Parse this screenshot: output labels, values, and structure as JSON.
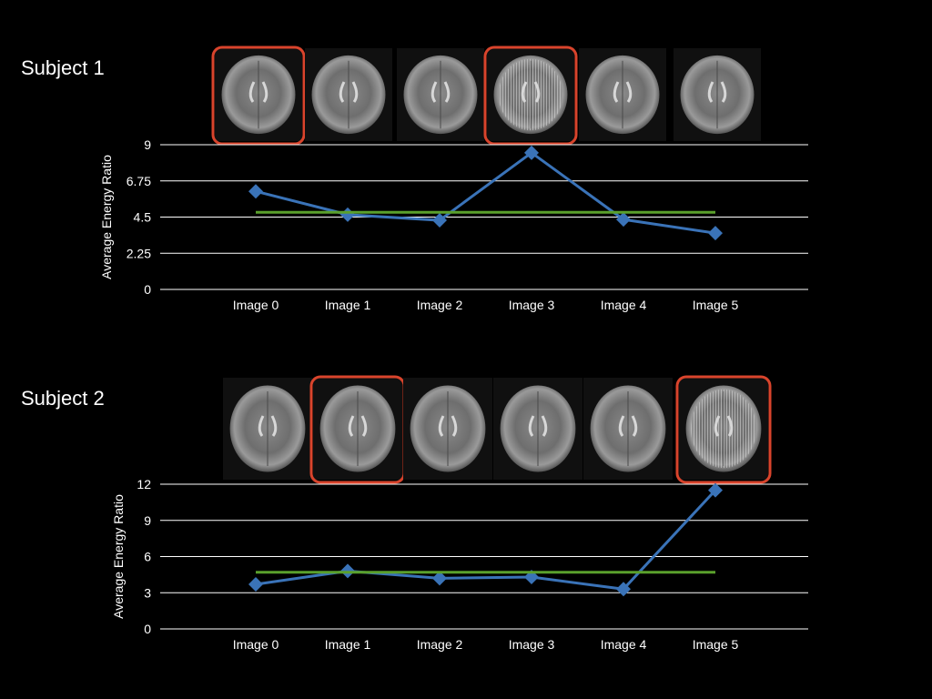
{
  "colors": {
    "background": "#000000",
    "gridline": "#ffffff",
    "series": "#3a73b8",
    "threshold": "#5aa02c",
    "highlight": "#d9442c"
  },
  "subjects": [
    {
      "label": "Subject 1",
      "thumbnails_flagged": [
        0,
        3
      ]
    },
    {
      "label": "Subject 2",
      "thumbnails_flagged": [
        1,
        5
      ]
    }
  ],
  "chart_data": [
    {
      "type": "line",
      "categories": [
        "Image 0",
        "Image 1",
        "Image 2",
        "Image 3",
        "Image 4",
        "Image 5"
      ],
      "ylabel": "Average Energy Ratio",
      "ylim": [
        0,
        9
      ],
      "yticks": [
        "0",
        "2.25",
        "4.5",
        "6.75",
        "9"
      ],
      "grid": true,
      "series": [
        {
          "values": [
            6.1,
            4.65,
            4.3,
            8.5,
            4.35,
            3.5
          ],
          "color": "#3a73b8",
          "marker": "diamond"
        },
        {
          "values": [
            4.8,
            4.8,
            4.8,
            4.8,
            4.8,
            4.8
          ],
          "color": "#5aa02c",
          "marker": "none"
        }
      ]
    },
    {
      "type": "line",
      "categories": [
        "Image 0",
        "Image 1",
        "Image 2",
        "Image 3",
        "Image 4",
        "Image 5"
      ],
      "ylabel": "Average Energy Ratio",
      "ylim": [
        0,
        12
      ],
      "yticks": [
        "0",
        "3",
        "6",
        "9",
        "12"
      ],
      "grid": true,
      "series": [
        {
          "values": [
            3.7,
            4.8,
            4.2,
            4.3,
            3.3,
            11.5
          ],
          "color": "#3a73b8",
          "marker": "diamond"
        },
        {
          "values": [
            4.7,
            4.7,
            4.7,
            4.7,
            4.7,
            4.7
          ],
          "color": "#5aa02c",
          "marker": "none"
        }
      ]
    }
  ]
}
